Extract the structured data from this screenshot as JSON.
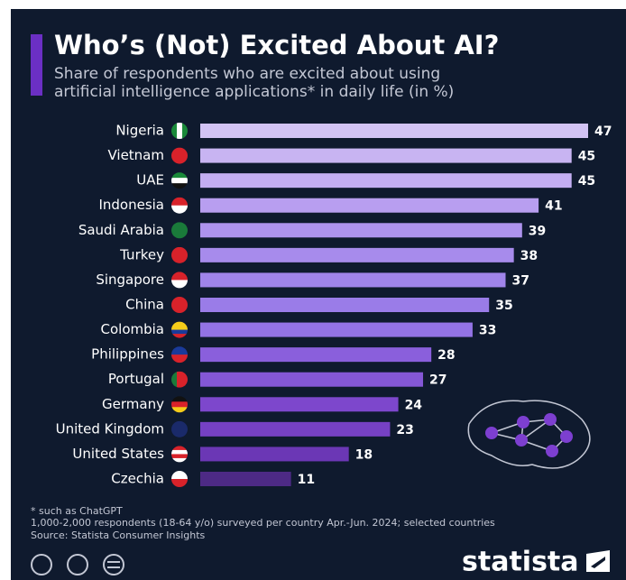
{
  "chart_data": {
    "type": "hbar",
    "title": "Who’s (Not) Excited About AI?",
    "subtitle": [
      "Share of respondents who are excited about using",
      "artificial intelligence applications* in daily life (in %)"
    ],
    "categories": [
      "Nigeria",
      "Vietnam",
      "UAE",
      "Indonesia",
      "Saudi Arabia",
      "Turkey",
      "Singapore",
      "China",
      "Colombia",
      "Philippines",
      "Portugal",
      "Germany",
      "United Kingdom",
      "United States",
      "Czechia"
    ],
    "values": [
      47,
      45,
      45,
      41,
      39,
      38,
      37,
      35,
      33,
      28,
      27,
      24,
      23,
      18,
      11
    ],
    "colors": [
      "#d2c3f4",
      "#c8b4f2",
      "#c3aef2",
      "#b89ef0",
      "#ae93ee",
      "#a78bec",
      "#a084ea",
      "#9a7ce8",
      "#9373e5",
      "#8a5fdc",
      "#8457d6",
      "#7d47cc",
      "#7641c4",
      "#6b37b5",
      "#4d2a85"
    ],
    "xlim": [
      0,
      47
    ],
    "notes": [
      "* such as ChatGPT",
      "1,000-2,000 respondents (18-64 y/o) surveyed per country Apr.-Jun. 2024; selected countries",
      "Source: Statista Consumer Insights"
    ],
    "logo": "statista"
  }
}
